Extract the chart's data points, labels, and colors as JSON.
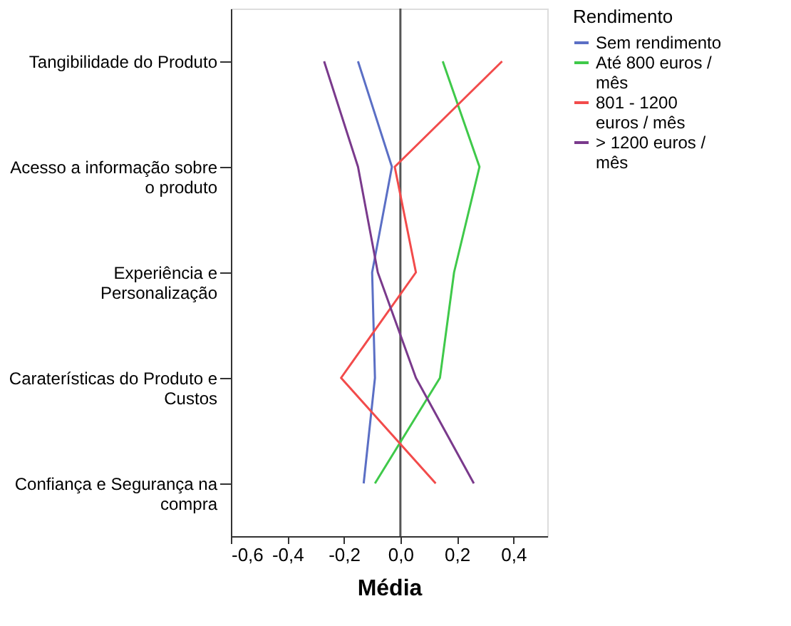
{
  "chart_data": {
    "type": "line",
    "xlabel": "Média",
    "legend_title": "Rendimento",
    "categories": [
      "Tangibilidade do Produto",
      "Acesso a informação sobre\no produto",
      "Experiência e\nPersonalização",
      "Caraterísticas do Produto e\nCustos",
      "Confiança e Segurança na\ncompra"
    ],
    "series": [
      {
        "name": "Sem rendimento",
        "color": "#5b6fc5",
        "values": [
          -0.15,
          -0.03,
          -0.1,
          -0.09,
          -0.13
        ]
      },
      {
        "name": "Até 800 euros /\nmês",
        "color": "#3fc94a",
        "values": [
          0.15,
          0.28,
          0.19,
          0.14,
          -0.09
        ]
      },
      {
        "name": "801 - 1200\neuros / mês",
        "color": "#f24b4b",
        "values": [
          0.36,
          -0.02,
          0.055,
          -0.21,
          0.125
        ]
      },
      {
        "name": "> 1200 euros /\nmês",
        "color": "#7a3a8c",
        "values": [
          -0.27,
          -0.15,
          -0.08,
          0.055,
          0.26
        ]
      }
    ],
    "orientation": "horizontal",
    "xlim": [
      -0.6,
      0.52
    ],
    "xticks": [
      {
        "value": -0.6,
        "label": "-0,6"
      },
      {
        "value": -0.4,
        "label": "-0,4"
      },
      {
        "value": -0.2,
        "label": "-0,2"
      },
      {
        "value": 0.0,
        "label": "0,0"
      },
      {
        "value": 0.2,
        "label": "0,2"
      },
      {
        "value": 0.4,
        "label": "0,4"
      }
    ],
    "ref_lines": [
      {
        "axis": "x",
        "value": 0,
        "color": "#555555"
      }
    ],
    "grid": false,
    "legend": "right",
    "marker": "none",
    "line_style": "solid"
  }
}
